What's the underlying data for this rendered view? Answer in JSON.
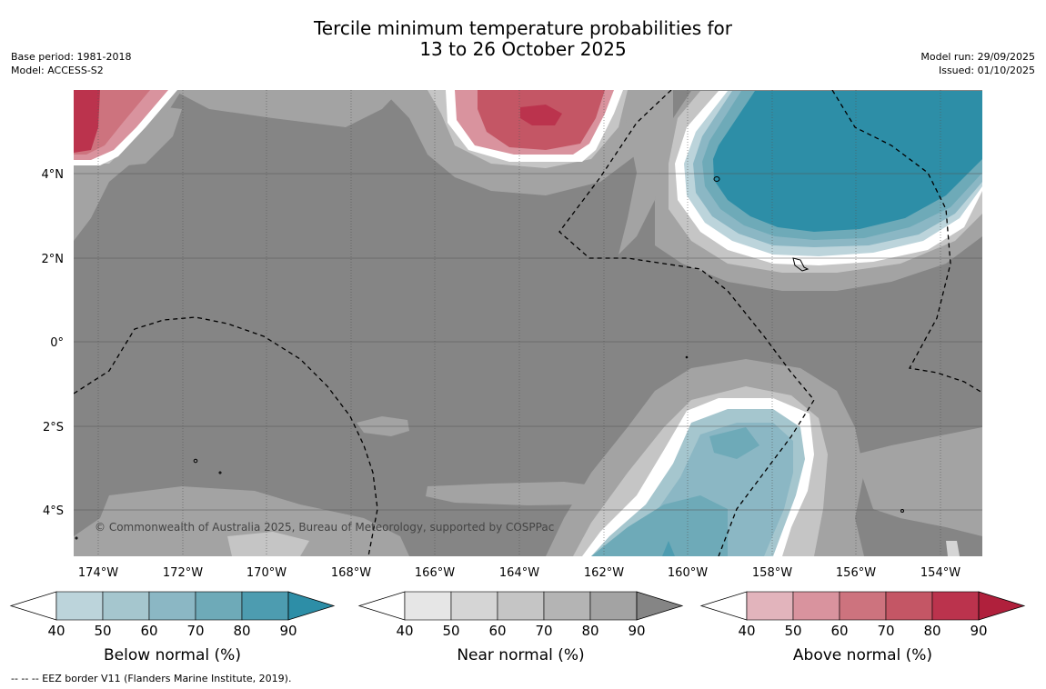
{
  "title_line1": "Tercile minimum temperature probabilities for",
  "title_line2": "13 to 26 October 2025",
  "base_period": "Base period: 1981-2018",
  "model": "Model: ACCESS-S2",
  "model_run": "Model run: 29/09/2025",
  "issued": "Issued: 01/10/2025",
  "copyright": "© Commonwealth of Australia 2025, Bureau of Meteorology, supported by COSPPac",
  "footer_note": "--  --  -- EEZ border V11 (Flanders Marine Institute, 2019).",
  "lon_labels": [
    "174°W",
    "172°W",
    "170°W",
    "168°W",
    "166°W",
    "164°W",
    "162°W",
    "160°W",
    "158°W",
    "156°W",
    "154°W"
  ],
  "lat_labels": [
    "4°N",
    "2°N",
    "0°",
    "2°S",
    "4°S"
  ],
  "colorbars": [
    {
      "title": "Below normal (%)",
      "ticks": [
        "40",
        "50",
        "60",
        "70",
        "80",
        "90"
      ],
      "colors": [
        "#bcd4db",
        "#a5c6ce",
        "#8bb7c4",
        "#6eaab8",
        "#4d9cb0",
        "#2d8ea7"
      ]
    },
    {
      "title": "Near normal (%)",
      "ticks": [
        "40",
        "50",
        "60",
        "70",
        "80",
        "90"
      ],
      "colors": [
        "#e6e6e6",
        "#d5d5d5",
        "#c5c5c5",
        "#b4b4b4",
        "#a3a3a3",
        "#858585"
      ]
    },
    {
      "title": "Above normal (%)",
      "ticks": [
        "40",
        "50",
        "60",
        "70",
        "80",
        "90"
      ],
      "colors": [
        "#e2b4bc",
        "#d9939e",
        "#cd737e",
        "#c45665",
        "#bb334d",
        "#b0203c"
      ]
    }
  ]
}
